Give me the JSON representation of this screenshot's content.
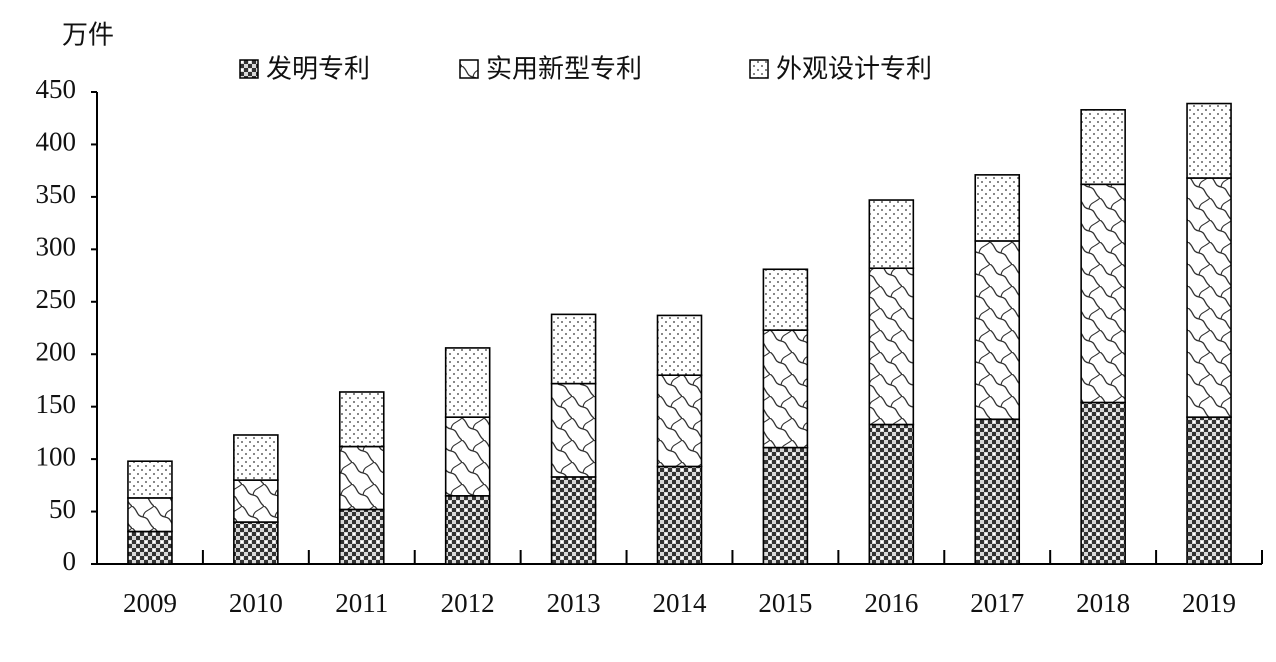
{
  "chart_data": {
    "type": "stacked_bar",
    "y_label": "万件",
    "categories": [
      "2009",
      "2010",
      "2011",
      "2012",
      "2013",
      "2014",
      "2015",
      "2016",
      "2017",
      "2018",
      "2019"
    ],
    "series": [
      {
        "name": "发明专利",
        "values": [
          31,
          40,
          52,
          65,
          83,
          93,
          111,
          133,
          138,
          154,
          140
        ]
      },
      {
        "name": "实用新型专利",
        "values": [
          32,
          40,
          60,
          75,
          89,
          87,
          112,
          149,
          170,
          208,
          228
        ]
      },
      {
        "name": "外观设计专利",
        "values": [
          35,
          43,
          52,
          66,
          66,
          57,
          58,
          65,
          63,
          71,
          71
        ]
      }
    ],
    "ylim": [
      0,
      450
    ],
    "yticks": [
      0,
      50,
      100,
      150,
      200,
      250,
      300,
      350,
      400,
      450
    ]
  }
}
